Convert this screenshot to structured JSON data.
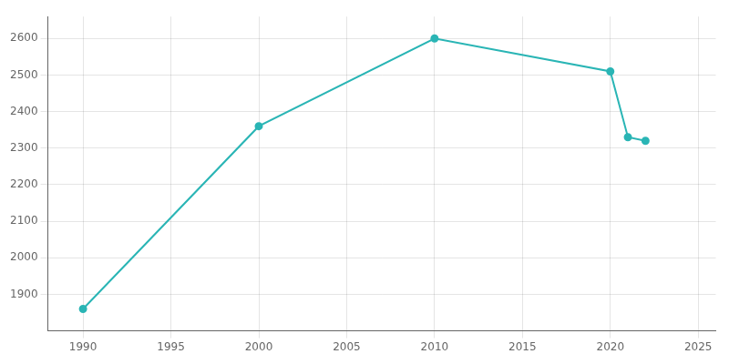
{
  "chart_data": {
    "type": "line",
    "x": [
      1990,
      2000,
      2010,
      2020,
      2021,
      2022
    ],
    "values": [
      1860,
      2360,
      2600,
      2510,
      2330,
      2320
    ],
    "color": "#2ab5b5",
    "marker": "circle",
    "xlim": [
      1988,
      2026
    ],
    "ylim": [
      1800,
      2660
    ],
    "xticks": [
      1990,
      1995,
      2000,
      2005,
      2010,
      2015,
      2020,
      2025
    ],
    "yticks": [
      1900,
      2000,
      2100,
      2200,
      2300,
      2400,
      2500,
      2600
    ],
    "grid": true
  }
}
